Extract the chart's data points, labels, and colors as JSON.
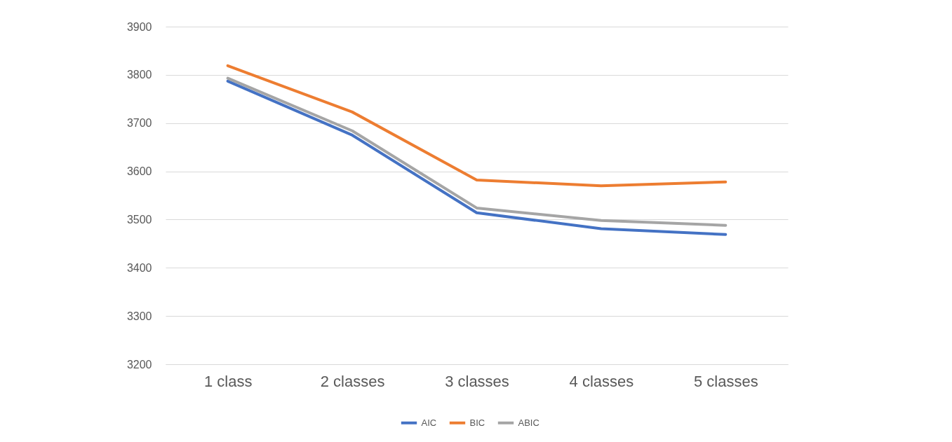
{
  "chart_data": {
    "type": "line",
    "categories": [
      "1 class",
      "2 classes",
      "3 classes",
      "4 classes",
      "5 classes"
    ],
    "series": [
      {
        "name": "AIC",
        "color": "#4472c4",
        "values": [
          3787,
          3675,
          3514,
          3481,
          3469
        ]
      },
      {
        "name": "BIC",
        "color": "#ed7d31",
        "values": [
          3819,
          3723,
          3582,
          3570,
          3578
        ]
      },
      {
        "name": "ABIC",
        "color": "#a5a5a5",
        "values": [
          3793,
          3684,
          3524,
          3498,
          3488
        ]
      }
    ],
    "ylim": [
      3200,
      3900
    ],
    "yticks": [
      3200,
      3300,
      3400,
      3500,
      3600,
      3700,
      3800,
      3900
    ],
    "grid": "y",
    "legend": "bottom",
    "marker": "none",
    "line_style": "solid"
  }
}
